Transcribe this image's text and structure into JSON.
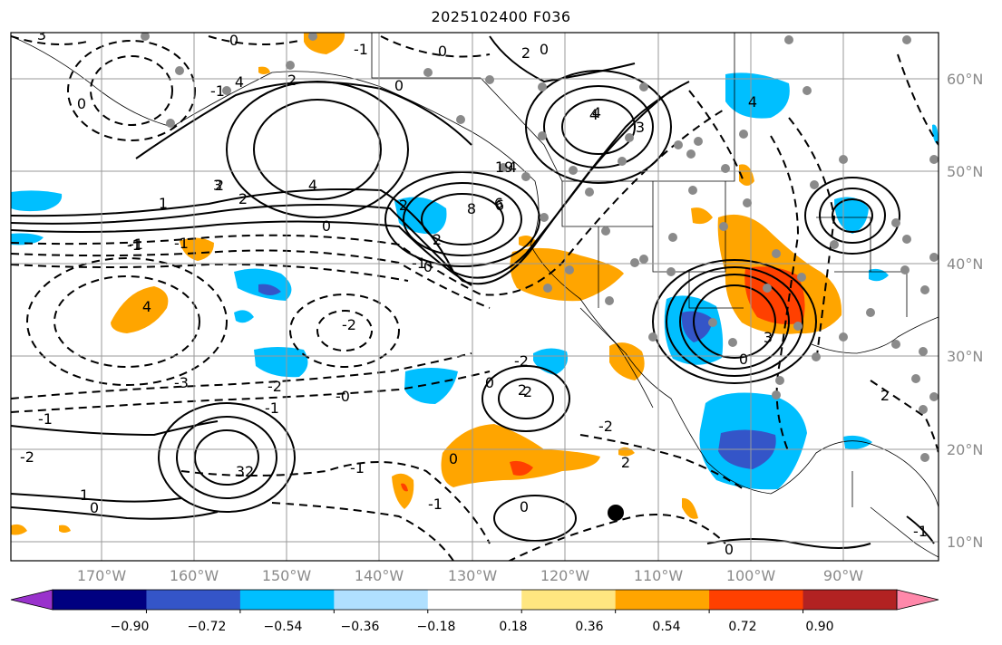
{
  "title": "2025102400 F036",
  "map": {
    "lat_labels": [
      "60°N",
      "50°N",
      "40°N",
      "30°N",
      "20°N",
      "10°N"
    ],
    "lon_labels": [
      "170°W",
      "160°W",
      "150°W",
      "140°W",
      "130°W",
      "120°W",
      "110°W",
      "100°W",
      "90°W"
    ],
    "contour_labels": [
      "3",
      "0",
      "0",
      "-1",
      "2",
      "0",
      "0",
      "-1",
      "4",
      "3",
      "2",
      "0",
      "2",
      "2",
      "4",
      "-1",
      "-1",
      "6",
      "0",
      "2",
      "8",
      "6",
      "4",
      "1",
      "4",
      "3",
      "19",
      "0",
      "4",
      "-1",
      "-1",
      "-2",
      "-3",
      "-2",
      "-0",
      "-1",
      "2",
      "4",
      "3",
      "0",
      "-1",
      "-2",
      "2",
      "0",
      "-1",
      "-1",
      "0",
      "32",
      "1",
      "0",
      "-2",
      "2",
      "-2",
      "0",
      "0",
      "2",
      "4",
      "-1",
      "2"
    ],
    "contour_label_count_note": "",
    "grid": true,
    "land_color": "#ffffff",
    "ocean_color": "#ffffff"
  },
  "colorbar": {
    "tick_labels": [
      "−0.90",
      "−0.72",
      "−0.54",
      "−0.36",
      "−0.18",
      "0.18",
      "0.36",
      "0.54",
      "0.72",
      "0.90"
    ],
    "colors": [
      "#9932cc",
      "#000080",
      "#3455c8",
      "#00bfff",
      "#b0e0ff",
      "#ffffff",
      "#ffe680",
      "#ffa500",
      "#ff4000",
      "#b22222",
      "#ff88aa"
    ]
  },
  "colors": {
    "negative_fill": "#00bfff",
    "negative_fill_strong": "#3455c8",
    "positive_fill": "#ffa500",
    "positive_fill_strong": "#ff4000",
    "contour": "#000000",
    "station_dot": "#8a8a8a"
  }
}
